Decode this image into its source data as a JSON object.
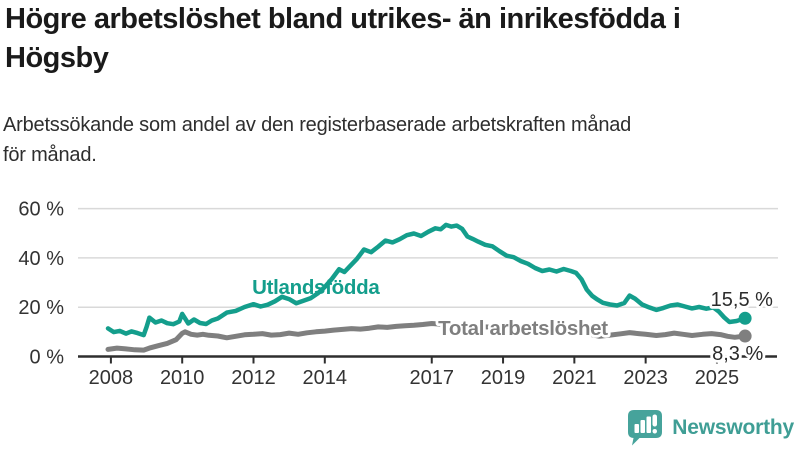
{
  "footer": {
    "brand": "Newsworthy",
    "brand_color": "#3f9e95",
    "logo_icon": "bar-chart-speech-bubble-icon"
  },
  "chart_data": {
    "type": "line",
    "title": "Högre arbetslöshet bland utrikes- än inrikesfödda i\nHögsby",
    "subtitle": "Arbetssökande som andel av den registerbaserade arbetskraften månad\nför månad.",
    "grid": true,
    "legend_position": "inline-labels",
    "x_axis": {
      "range": [
        2007.6,
        2026.8
      ],
      "ticks": [
        2008,
        2010,
        2012,
        2014,
        2017,
        2019,
        2021,
        2023,
        2025
      ],
      "tick_labels": [
        "2008",
        "2010",
        "2012",
        "2014",
        "2017",
        "2019",
        "2021",
        "2023",
        "2025"
      ]
    },
    "y_axis": {
      "unit": "%",
      "range": [
        0,
        65
      ],
      "ticks": [
        0,
        20,
        40,
        60
      ],
      "tick_labels": [
        "0 %",
        "20 %",
        "40 %",
        "60 %"
      ]
    },
    "series": [
      {
        "name": "Total arbetslöshet",
        "color": "#7f7f7f",
        "line_width": 5,
        "end_value": 8.3,
        "end_label": "8,3 %",
        "points": [
          [
            2007.92,
            2.9
          ],
          [
            2008.17,
            3.4
          ],
          [
            2008.42,
            3.1
          ],
          [
            2008.67,
            2.7
          ],
          [
            2008.92,
            2.6
          ],
          [
            2009.08,
            3.4
          ],
          [
            2009.33,
            4.4
          ],
          [
            2009.58,
            5.3
          ],
          [
            2009.83,
            6.8
          ],
          [
            2010.0,
            9.4
          ],
          [
            2010.08,
            10.0
          ],
          [
            2010.25,
            9.0
          ],
          [
            2010.42,
            8.7
          ],
          [
            2010.58,
            9.0
          ],
          [
            2010.75,
            8.6
          ],
          [
            2011.0,
            8.3
          ],
          [
            2011.25,
            7.6
          ],
          [
            2011.5,
            8.2
          ],
          [
            2011.75,
            8.8
          ],
          [
            2012.0,
            9.0
          ],
          [
            2012.25,
            9.3
          ],
          [
            2012.5,
            8.7
          ],
          [
            2012.75,
            8.9
          ],
          [
            2013.0,
            9.5
          ],
          [
            2013.25,
            9.0
          ],
          [
            2013.5,
            9.6
          ],
          [
            2013.75,
            10.0
          ],
          [
            2014.0,
            10.3
          ],
          [
            2014.25,
            10.7
          ],
          [
            2014.5,
            11.0
          ],
          [
            2014.75,
            11.3
          ],
          [
            2015.0,
            11.1
          ],
          [
            2015.25,
            11.5
          ],
          [
            2015.5,
            12.0
          ],
          [
            2015.75,
            11.8
          ],
          [
            2016.0,
            12.2
          ],
          [
            2016.25,
            12.5
          ],
          [
            2016.5,
            12.7
          ],
          [
            2016.75,
            13.0
          ],
          [
            2017.0,
            13.4
          ],
          [
            2017.3,
            13.1
          ],
          [
            2017.6,
            12.9
          ],
          [
            2017.9,
            12.6
          ],
          [
            2018.2,
            12.3
          ],
          [
            2018.5,
            12.0
          ],
          [
            2018.8,
            11.8
          ],
          [
            2019.1,
            11.5
          ],
          [
            2019.4,
            11.3
          ],
          [
            2019.7,
            11.4
          ],
          [
            2020.0,
            11.9
          ],
          [
            2020.3,
            12.6
          ],
          [
            2020.6,
            12.3
          ],
          [
            2020.9,
            11.6
          ],
          [
            2021.2,
            10.2
          ],
          [
            2021.45,
            9.0
          ],
          [
            2021.7,
            8.2
          ],
          [
            2022.0,
            8.7
          ],
          [
            2022.3,
            9.2
          ],
          [
            2022.55,
            9.7
          ],
          [
            2022.8,
            9.3
          ],
          [
            2023.0,
            9.0
          ],
          [
            2023.3,
            8.5
          ],
          [
            2023.55,
            8.9
          ],
          [
            2023.8,
            9.5
          ],
          [
            2024.05,
            9.0
          ],
          [
            2024.3,
            8.5
          ],
          [
            2024.6,
            9.0
          ],
          [
            2024.85,
            9.3
          ],
          [
            2025.1,
            8.9
          ],
          [
            2025.3,
            8.2
          ],
          [
            2025.5,
            7.8
          ],
          [
            2025.79,
            8.3
          ]
        ]
      },
      {
        "name": "Utlandsfödda",
        "color": "#149e8c",
        "line_width": 4.5,
        "end_value": 15.5,
        "end_label": "15,5 %",
        "points": [
          [
            2007.92,
            11.4
          ],
          [
            2008.08,
            9.9
          ],
          [
            2008.25,
            10.4
          ],
          [
            2008.42,
            9.3
          ],
          [
            2008.58,
            10.2
          ],
          [
            2008.75,
            9.5
          ],
          [
            2008.92,
            8.7
          ],
          [
            2009.0,
            12.0
          ],
          [
            2009.08,
            15.8
          ],
          [
            2009.25,
            13.8
          ],
          [
            2009.42,
            14.6
          ],
          [
            2009.58,
            13.5
          ],
          [
            2009.75,
            13.1
          ],
          [
            2009.92,
            14.2
          ],
          [
            2010.0,
            17.3
          ],
          [
            2010.17,
            13.4
          ],
          [
            2010.33,
            15.0
          ],
          [
            2010.5,
            13.6
          ],
          [
            2010.67,
            13.2
          ],
          [
            2010.83,
            14.6
          ],
          [
            2011.0,
            15.4
          ],
          [
            2011.25,
            17.8
          ],
          [
            2011.5,
            18.5
          ],
          [
            2011.75,
            20.1
          ],
          [
            2012.0,
            21.2
          ],
          [
            2012.2,
            20.3
          ],
          [
            2012.4,
            21.0
          ],
          [
            2012.6,
            22.4
          ],
          [
            2012.8,
            24.2
          ],
          [
            2013.0,
            23.3
          ],
          [
            2013.2,
            21.6
          ],
          [
            2013.4,
            22.6
          ],
          [
            2013.6,
            23.6
          ],
          [
            2013.8,
            25.6
          ],
          [
            2014.0,
            28.2
          ],
          [
            2014.2,
            31.5
          ],
          [
            2014.4,
            35.4
          ],
          [
            2014.55,
            34.3
          ],
          [
            2014.7,
            36.6
          ],
          [
            2014.9,
            39.6
          ],
          [
            2015.1,
            43.4
          ],
          [
            2015.3,
            42.3
          ],
          [
            2015.5,
            44.6
          ],
          [
            2015.7,
            47.0
          ],
          [
            2015.9,
            46.3
          ],
          [
            2016.1,
            47.6
          ],
          [
            2016.3,
            49.2
          ],
          [
            2016.5,
            49.9
          ],
          [
            2016.7,
            48.9
          ],
          [
            2016.9,
            50.6
          ],
          [
            2017.1,
            52.0
          ],
          [
            2017.25,
            51.6
          ],
          [
            2017.4,
            53.4
          ],
          [
            2017.55,
            52.7
          ],
          [
            2017.7,
            53.1
          ],
          [
            2017.85,
            51.8
          ],
          [
            2018.0,
            48.7
          ],
          [
            2018.15,
            47.7
          ],
          [
            2018.3,
            46.6
          ],
          [
            2018.5,
            45.3
          ],
          [
            2018.7,
            44.7
          ],
          [
            2018.9,
            42.7
          ],
          [
            2019.1,
            40.9
          ],
          [
            2019.3,
            40.3
          ],
          [
            2019.5,
            38.7
          ],
          [
            2019.7,
            37.6
          ],
          [
            2019.9,
            35.9
          ],
          [
            2020.1,
            34.7
          ],
          [
            2020.3,
            35.3
          ],
          [
            2020.5,
            34.5
          ],
          [
            2020.7,
            35.5
          ],
          [
            2020.9,
            34.7
          ],
          [
            2021.05,
            33.9
          ],
          [
            2021.2,
            31.3
          ],
          [
            2021.35,
            27.1
          ],
          [
            2021.5,
            24.6
          ],
          [
            2021.65,
            23.1
          ],
          [
            2021.8,
            21.8
          ],
          [
            2022.0,
            21.1
          ],
          [
            2022.2,
            20.7
          ],
          [
            2022.4,
            21.7
          ],
          [
            2022.55,
            24.7
          ],
          [
            2022.7,
            23.5
          ],
          [
            2022.9,
            21.1
          ],
          [
            2023.1,
            19.9
          ],
          [
            2023.3,
            18.9
          ],
          [
            2023.5,
            19.7
          ],
          [
            2023.7,
            20.7
          ],
          [
            2023.9,
            21.1
          ],
          [
            2024.1,
            20.3
          ],
          [
            2024.3,
            19.5
          ],
          [
            2024.5,
            20.1
          ],
          [
            2024.7,
            19.4
          ],
          [
            2024.9,
            19.9
          ],
          [
            2025.05,
            18.3
          ],
          [
            2025.2,
            15.9
          ],
          [
            2025.35,
            14.0
          ],
          [
            2025.55,
            14.4
          ],
          [
            2025.79,
            15.5
          ]
        ]
      }
    ],
    "annotations": [
      {
        "text": "Utlandsfödda",
        "year": 2011.96,
        "pct": 25.4,
        "anchor": "start",
        "style": "series-teal",
        "halo": false
      },
      {
        "text": "Total arbetslöshet",
        "year": 2017.18,
        "pct": 8.7,
        "anchor": "start",
        "style": "series-gray",
        "halo": true
      },
      {
        "text": "15,5 %",
        "year": 2026.57,
        "pct": 20.5,
        "anchor": "end",
        "style": "value",
        "halo": true
      },
      {
        "text": "8,3 %",
        "year": 2026.3,
        "pct": -1.4,
        "anchor": "end",
        "style": "value",
        "halo": true
      }
    ],
    "colors": {
      "grid": "#d9d9d9",
      "axis": "#2e2e2e",
      "teal": "#149e8c",
      "gray": "#7f7f7f"
    }
  }
}
